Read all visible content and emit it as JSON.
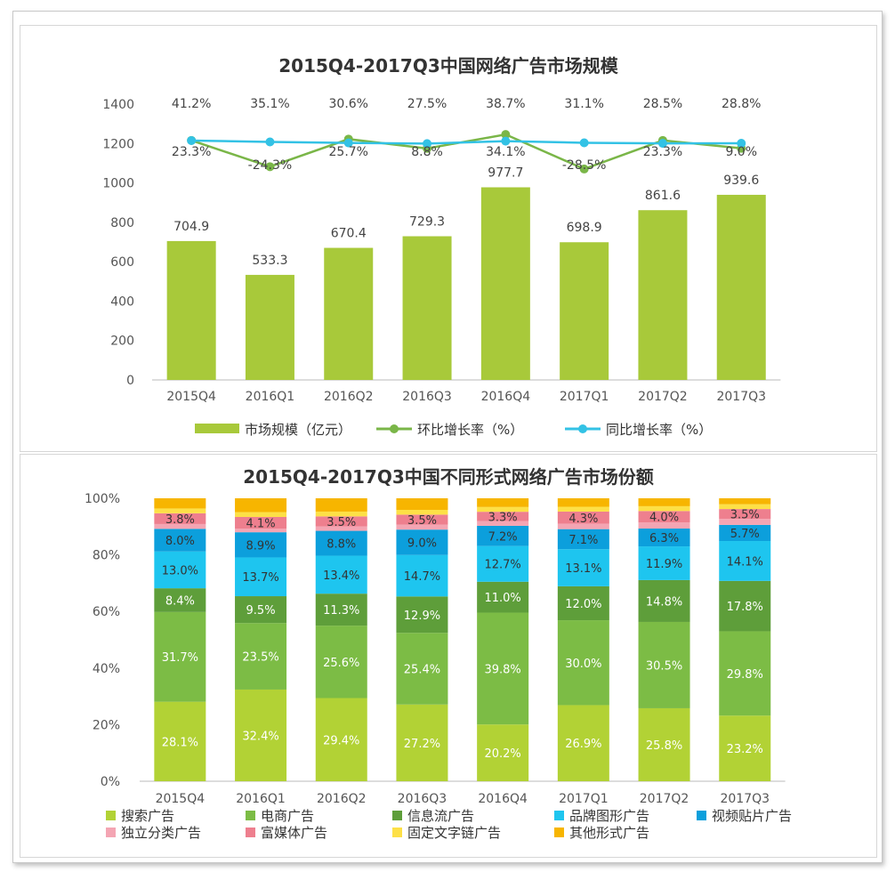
{
  "chart_data": [
    {
      "type": "bar+line",
      "title": "2015Q4-2017Q3中国网络广告市场规模",
      "categories": [
        "2015Q4",
        "2016Q1",
        "2016Q2",
        "2016Q3",
        "2016Q4",
        "2017Q1",
        "2017Q2",
        "2017Q3"
      ],
      "ylim": [
        0,
        1400
      ],
      "yticks": [
        0,
        200,
        400,
        600,
        800,
        1000,
        1200,
        1400
      ],
      "series": [
        {
          "name": "市场规模（亿元）",
          "kind": "bar",
          "color": "#a8c93a",
          "values": [
            704.9,
            533.3,
            670.4,
            729.3,
            977.7,
            698.9,
            861.6,
            939.6
          ],
          "labels": [
            "704.9",
            "533.3",
            "670.4",
            "729.3",
            "977.7",
            "698.9",
            "861.6",
            "939.6"
          ]
        },
        {
          "name": "环比增长率（%）",
          "kind": "line",
          "color": "#7ab648",
          "values": [
            23.3,
            -24.3,
            25.7,
            8.8,
            34.1,
            -28.5,
            23.3,
            9.0
          ],
          "labels": [
            "23.3%",
            "-24.3%",
            "25.7%",
            "8.8%",
            "34.1%",
            "-28.5%",
            "23.3%",
            "9.0%"
          ]
        },
        {
          "name": "同比增长率（%）",
          "kind": "line",
          "color": "#33c2e5",
          "values": [
            41.2,
            35.1,
            30.6,
            27.5,
            38.7,
            31.1,
            28.5,
            28.8
          ],
          "labels": [
            "41.2%",
            "35.1%",
            "30.6%",
            "27.5%",
            "38.7%",
            "31.1%",
            "28.5%",
            "28.8%"
          ]
        }
      ]
    },
    {
      "type": "stacked-bar",
      "title": "2015Q4-2017Q3中国不同形式网络广告市场份额",
      "categories": [
        "2015Q4",
        "2016Q1",
        "2016Q2",
        "2016Q3",
        "2016Q4",
        "2017Q1",
        "2017Q2",
        "2017Q3"
      ],
      "ylim": [
        0,
        100
      ],
      "yticks": [
        "0%",
        "20%",
        "40%",
        "60%",
        "80%",
        "100%"
      ],
      "series": [
        {
          "name": "搜索广告",
          "color": "#b2d235",
          "values": [
            28.1,
            32.4,
            29.4,
            27.2,
            20.2,
            26.9,
            25.8,
            23.2
          ],
          "labels": [
            "28.1%",
            "32.4%",
            "29.4%",
            "27.2%",
            "20.2%",
            "26.9%",
            "25.8%",
            "23.2%"
          ]
        },
        {
          "name": "电商广告",
          "color": "#7cbc45",
          "values": [
            31.7,
            23.5,
            25.6,
            25.4,
            39.8,
            30.0,
            30.5,
            29.8
          ],
          "labels": [
            "31.7%",
            "23.5%",
            "25.6%",
            "25.4%",
            "39.8%",
            "30.0%",
            "30.5%",
            "29.8%"
          ]
        },
        {
          "name": "信息流广告",
          "color": "#5e9e3a",
          "values": [
            8.4,
            9.5,
            11.3,
            12.9,
            11.0,
            12.0,
            14.8,
            17.8
          ],
          "labels": [
            "8.4%",
            "9.5%",
            "11.3%",
            "12.9%",
            "11.0%",
            "12.0%",
            "14.8%",
            "17.8%"
          ]
        },
        {
          "name": "品牌图形广告",
          "color": "#1ec5ef",
          "values": [
            13.0,
            13.7,
            13.4,
            14.7,
            12.7,
            13.1,
            11.9,
            14.1
          ],
          "labels": [
            "13.0%",
            "13.7%",
            "13.4%",
            "14.7%",
            "12.7%",
            "13.1%",
            "11.9%",
            "14.1%"
          ]
        },
        {
          "name": "视频贴片广告",
          "color": "#0c9fdc",
          "values": [
            8.0,
            8.9,
            8.8,
            9.0,
            7.2,
            7.1,
            6.3,
            5.7
          ],
          "labels": [
            "8.0%",
            "8.9%",
            "8.8%",
            "9.0%",
            "7.2%",
            "7.1%",
            "6.3%",
            "5.7%"
          ]
        },
        {
          "name": "独立分类广告",
          "color": "#f4a5b3",
          "values": [
            1.7,
            1.3,
            1.6,
            1.8,
            1.7,
            1.9,
            2.2,
            2.1
          ],
          "labels": [
            null,
            null,
            null,
            null,
            null,
            null,
            null,
            null
          ]
        },
        {
          "name": "富媒体广告",
          "color": "#ee7f8e",
          "values": [
            3.8,
            4.1,
            3.5,
            3.5,
            3.3,
            4.3,
            4.0,
            3.5
          ],
          "labels": [
            "3.8%",
            "4.1%",
            "3.5%",
            "3.5%",
            "3.3%",
            "4.3%",
            "4.0%",
            "3.5%"
          ]
        },
        {
          "name": "固定文字链广告",
          "color": "#fde047",
          "values": [
            1.7,
            1.7,
            1.7,
            1.7,
            1.7,
            1.7,
            1.7,
            1.7
          ],
          "labels": [
            null,
            null,
            null,
            null,
            null,
            null,
            null,
            null
          ]
        },
        {
          "name": "其他形式广告",
          "color": "#f7b500",
          "values": [
            3.6,
            4.9,
            4.7,
            4.1,
            3.1,
            3.0,
            2.8,
            2.1
          ],
          "labels": [
            null,
            null,
            null,
            null,
            null,
            null,
            null,
            null
          ]
        }
      ],
      "legend_rows": [
        [
          "搜索广告",
          "电商广告",
          "信息流广告",
          "品牌图形广告",
          "视频贴片广告"
        ],
        [
          "独立分类广告",
          "富媒体广告",
          "固定文字链广告",
          "其他形式广告"
        ]
      ]
    }
  ]
}
